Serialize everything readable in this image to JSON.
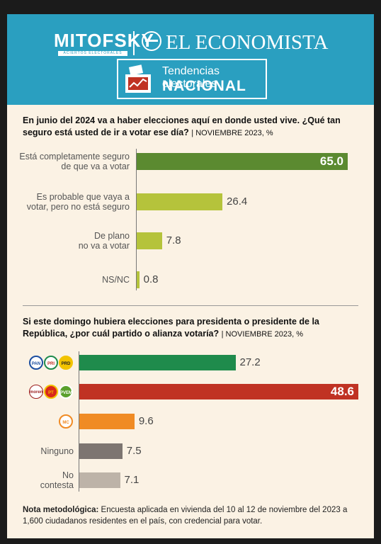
{
  "header": {
    "brand1": "MITOFSKY",
    "brand1_sub": "ACIERTOS ELECTORALES",
    "brand2": "EL ECONOMISTA",
    "badge_line1": "Tendencias electorales",
    "badge_line2": "NACIONAL"
  },
  "colors": {
    "header_bg": "#2a9fc0",
    "panel_bg": "#fbf2e4",
    "q1_top": "#5b8a30",
    "q1_other": "#b5c33b",
    "morena": "#c03223",
    "pan_pri_prd": "#1f8b4c",
    "mc": "#f08b24",
    "ninguno": "#7d7571",
    "no_contesta": "#bdb3a8"
  },
  "chart_data": [
    {
      "type": "bar",
      "orientation": "horizontal",
      "title": "En junio del 2024 va a haber elecciones aquí en donde usted vive. ¿Qué tan seguro está usted de ir a votar ese día?",
      "subtitle": "NOVIEMBRE 2023, %",
      "categories": [
        [
          "Está completamente seguro",
          "de que va a votar"
        ],
        [
          "Es probable que vaya a",
          "votar, pero no está seguro"
        ],
        [
          "De plano",
          "no va a votar"
        ],
        [
          "NS/NC"
        ]
      ],
      "values": [
        65.0,
        26.4,
        7.8,
        0.8
      ],
      "labels": [
        "65.0",
        "26.4",
        "7.8",
        "0.8"
      ],
      "xlim": [
        0,
        65
      ]
    },
    {
      "type": "bar",
      "orientation": "horizontal",
      "title": "Si este domingo hubiera elecciones para presidenta o presidente de la República, ¿por cuál partido o alianza votaría?",
      "subtitle": "NOVIEMBRE 2023, %",
      "categories": [
        {
          "logos": [
            "PAN",
            "PRI",
            "PRD"
          ],
          "label": ""
        },
        {
          "logos": [
            "morena",
            "PT",
            "PVEM"
          ],
          "label": ""
        },
        {
          "logos": [
            "MC"
          ],
          "label": ""
        },
        {
          "logos": [],
          "label": [
            "Ninguno"
          ]
        },
        {
          "logos": [],
          "label": [
            "No",
            "contesta"
          ]
        }
      ],
      "values": [
        27.2,
        48.6,
        9.6,
        7.5,
        7.1
      ],
      "labels": [
        "27.2",
        "48.6",
        "9.6",
        "7.5",
        "7.1"
      ],
      "xlim": [
        0,
        48.6
      ]
    }
  ],
  "nota": {
    "label": "Nota metodológica:",
    "text": "Encuesta aplicada en vivienda del 10 al 12 de noviembre del 2023 a 1,600 ciudadanos residentes en el país, con credencial para votar."
  }
}
